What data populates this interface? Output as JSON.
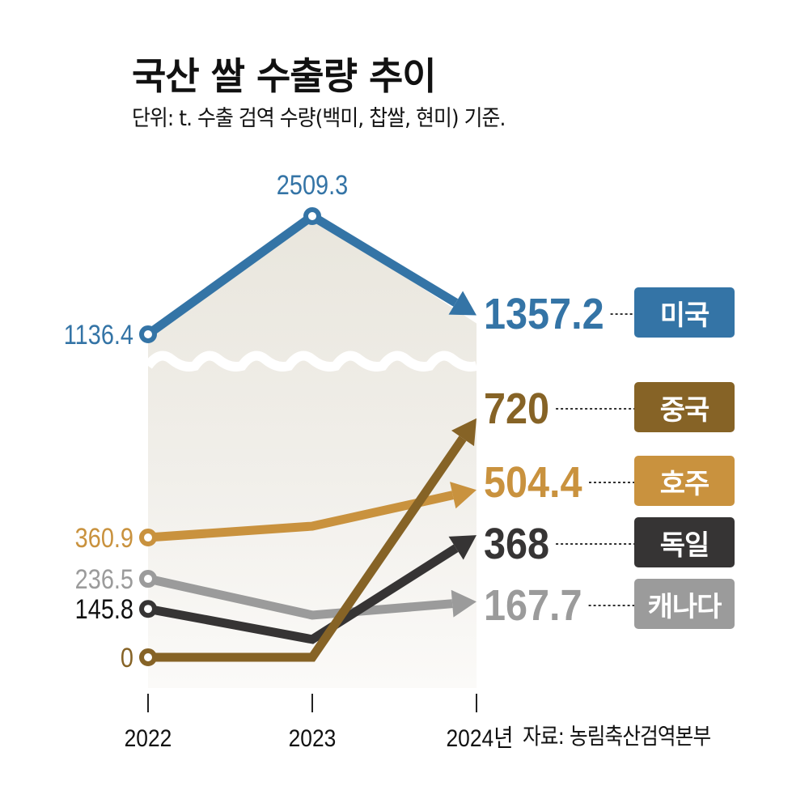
{
  "chart_data": {
    "type": "line",
    "title": "국산 쌀 수출량 추이",
    "subtitle": "단위: t. 수출 검역 수량(백미, 찹쌀, 현미) 기준.",
    "source": "자료: 농림축산검역본부",
    "categories": [
      "2022",
      "2023",
      "2024년"
    ],
    "axis_break": true,
    "series": [
      {
        "name": "미국",
        "color": "#3474a6",
        "values": [
          1136.4,
          2509.3,
          1357.2
        ],
        "labels": [
          "1136.4",
          "2509.3",
          "1357.2"
        ]
      },
      {
        "name": "중국",
        "color": "#866326",
        "values": [
          0,
          0,
          720
        ],
        "labels": [
          "0",
          "",
          "720"
        ]
      },
      {
        "name": "호주",
        "color": "#c9923e",
        "values": [
          360.9,
          395,
          504.4
        ],
        "labels": [
          "360.9",
          "",
          "504.4"
        ]
      },
      {
        "name": "독일",
        "color": "#363434",
        "values": [
          145.8,
          54,
          368
        ],
        "labels": [
          "145.8",
          "",
          "368"
        ]
      },
      {
        "name": "캐나다",
        "color": "#9b9b9b",
        "values": [
          236.5,
          127,
          167.7
        ],
        "labels": [
          "236.5",
          "",
          "167.7"
        ]
      }
    ],
    "start_label_colors": {
      "미국": "#3474a6",
      "중국": "#866326",
      "호주": "#c9923e",
      "독일": "#111111",
      "캐나다": "#9b9b9b"
    },
    "background_fill": "#ebe8e0"
  }
}
